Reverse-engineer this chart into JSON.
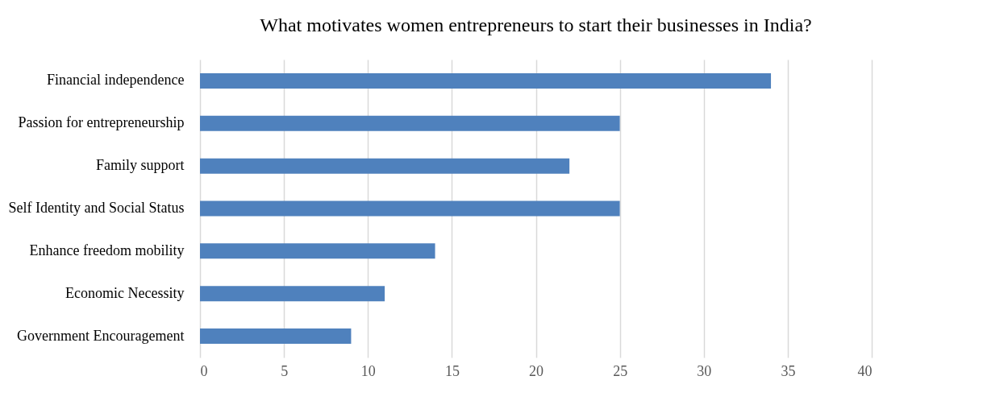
{
  "chart_data": {
    "type": "bar",
    "orientation": "horizontal",
    "title": "What motivates women entrepreneurs to start their businesses in India?",
    "categories": [
      "Financial independence",
      "Passion for entrepreneurship",
      "Family support",
      "Self Identity and Social Status",
      "Enhance freedom mobility",
      "Economic Necessity",
      "Government Encouragement"
    ],
    "values": [
      34,
      25,
      22,
      25,
      14,
      11,
      9
    ],
    "color": "#4f81bd",
    "xlim": [
      0,
      40
    ],
    "xticks": [
      0,
      5,
      10,
      15,
      20,
      25,
      30,
      35,
      40
    ],
    "grid": "x"
  }
}
